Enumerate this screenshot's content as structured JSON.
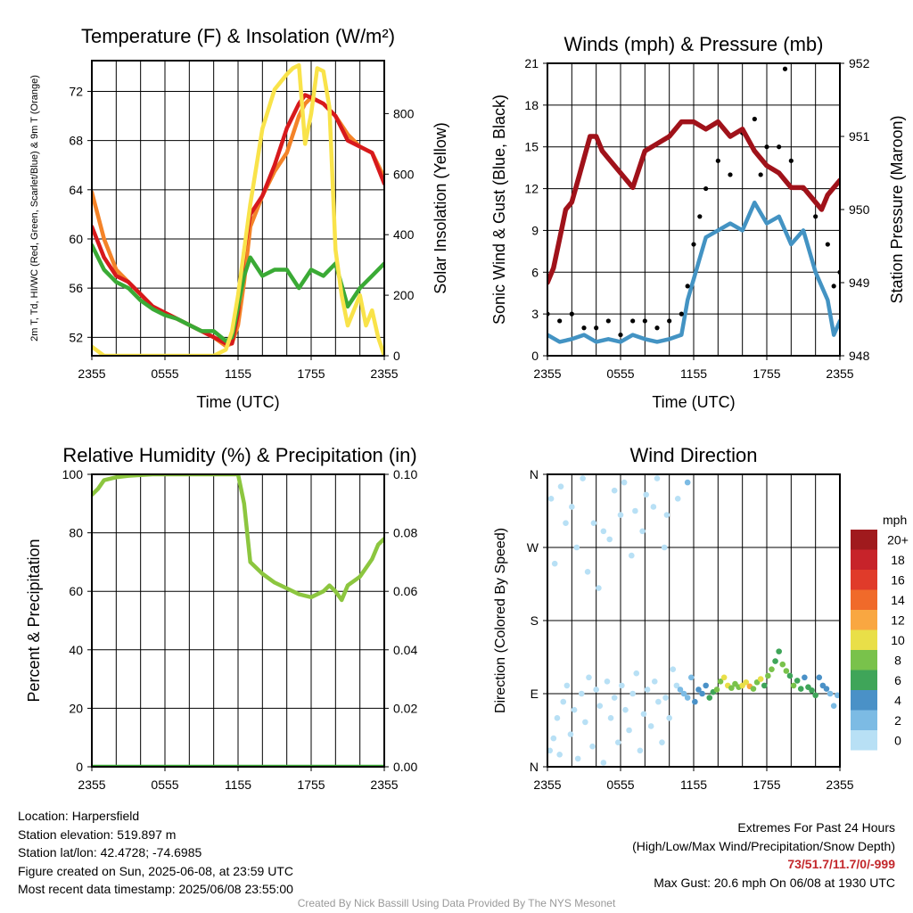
{
  "chart_data": [
    {
      "type": "line",
      "title": "Temperature (F) & Insolation (W/m²)",
      "xlabel": "Time (UTC)",
      "ylabel": "2m T, Td, HI/WC (Red, Green, Scarlet/Blue) & 9m T (Orange)",
      "y2label": "Solar Insolation (Yellow)",
      "x_ticks": [
        "2355",
        "0555",
        "1155",
        "1755",
        "2355"
      ],
      "y_ticks": [
        52,
        56,
        60,
        64,
        68,
        72
      ],
      "y2_ticks": [
        0,
        200,
        400,
        600,
        800
      ],
      "ylim": [
        50.5,
        74.5
      ],
      "y2lim": [
        0,
        975
      ],
      "x_hours": [
        0,
        24
      ],
      "grid": true,
      "series": [
        {
          "color": "#f48328",
          "x": [
            0,
            1,
            2,
            3,
            4,
            5,
            6,
            7,
            8,
            9,
            10,
            11,
            11.5,
            12,
            12.5,
            13,
            14,
            15,
            16,
            17,
            17.5,
            18,
            19,
            20,
            21,
            22,
            23,
            24
          ],
          "values": [
            63.8,
            60,
            57.5,
            56.5,
            55.5,
            54.5,
            54,
            53.5,
            53,
            52.5,
            52,
            51.3,
            51.5,
            53,
            56.5,
            61,
            63.5,
            65.5,
            67,
            70,
            71,
            71.5,
            71,
            70,
            68.5,
            67.5,
            67,
            65
          ]
        },
        {
          "color": "#d7191c",
          "x": [
            0,
            1,
            2,
            3,
            4,
            5,
            6,
            7,
            8,
            9,
            10,
            11,
            11.5,
            12,
            12.5,
            13,
            14,
            15,
            16,
            17,
            17.5,
            18,
            19,
            20,
            21,
            22,
            23,
            24
          ],
          "values": [
            61,
            58.5,
            57,
            56.5,
            55.5,
            54.5,
            54,
            53.5,
            53,
            52.5,
            52,
            51.5,
            51.5,
            54,
            59,
            62,
            63.5,
            66,
            69,
            71,
            71.7,
            71.5,
            71,
            70,
            68,
            67.5,
            67,
            64.5
          ]
        },
        {
          "color": "#3aaa35",
          "x": [
            0,
            1,
            2,
            3,
            4,
            5,
            6,
            7,
            8,
            9,
            10,
            11,
            11.5,
            12,
            12.5,
            13,
            14,
            15,
            16,
            17,
            18,
            19,
            20,
            21,
            22,
            23,
            24
          ],
          "values": [
            59.5,
            57.5,
            56.5,
            56,
            55,
            54.3,
            53.8,
            53.5,
            53,
            52.5,
            52.5,
            51.7,
            52,
            54.5,
            57,
            58.5,
            57,
            57.5,
            57.5,
            56,
            57.5,
            57,
            58,
            54.5,
            56,
            57,
            58
          ]
        },
        {
          "color": "#f9e34a",
          "axis": "y2",
          "x": [
            0,
            1,
            2,
            3,
            4,
            5,
            6,
            7,
            8,
            9,
            10,
            11,
            11.5,
            12,
            13,
            14,
            15,
            16,
            16.5,
            17,
            17.5,
            18,
            18.5,
            19,
            19.5,
            20,
            20.5,
            21,
            22,
            22.5,
            23,
            23.5,
            24
          ],
          "values": [
            30,
            0,
            0,
            0,
            0,
            0,
            0,
            0,
            0,
            0,
            0,
            20,
            80,
            200,
            500,
            750,
            880,
            930,
            950,
            960,
            700,
            800,
            950,
            940,
            820,
            350,
            200,
            100,
            200,
            100,
            150,
            60,
            0
          ]
        }
      ]
    },
    {
      "type": "line",
      "title": "Winds (mph) & Pressure (mb)",
      "xlabel": "Time (UTC)",
      "ylabel": "Sonic Wind & Gust (Blue, Black)",
      "y2label": "Station Pressure (Maroon)",
      "x_ticks": [
        "2355",
        "0555",
        "1155",
        "1755",
        "2355"
      ],
      "y_ticks": [
        0,
        3,
        6,
        9,
        12,
        15,
        18,
        21
      ],
      "y2_ticks": [
        948,
        949,
        950,
        951,
        952
      ],
      "ylim": [
        0,
        21
      ],
      "y2lim": [
        948,
        952
      ],
      "x_hours": [
        0,
        24
      ],
      "grid": true,
      "series": [
        {
          "color": "#4393c3",
          "x": [
            0,
            1,
            2,
            3,
            4,
            5,
            6,
            7,
            8,
            9,
            10,
            11,
            11.5,
            12,
            12.5,
            13,
            14,
            15,
            16,
            17,
            18,
            19,
            20,
            21,
            22,
            23,
            23.5,
            24
          ],
          "values": [
            1.5,
            1,
            1.2,
            1.5,
            1,
            1.2,
            1,
            1.5,
            1.2,
            1,
            1.2,
            1.5,
            4,
            5.5,
            7,
            8.5,
            9,
            9.5,
            9,
            11,
            9.5,
            10,
            8,
            9,
            6,
            4,
            1.5,
            2.5
          ]
        },
        {
          "color": "#000000",
          "style": "points",
          "x": [
            0,
            1,
            2,
            3,
            4,
            5,
            6,
            7,
            8,
            9,
            10,
            11,
            11.5,
            12,
            12.5,
            13,
            14,
            15,
            16,
            17,
            17.5,
            18,
            19,
            19.5,
            20,
            21,
            22,
            23,
            23.5,
            24
          ],
          "values": [
            3,
            2.5,
            3,
            2,
            2,
            2.5,
            1.5,
            2.5,
            2.5,
            2,
            2.5,
            3,
            5,
            8,
            10,
            12,
            14,
            13,
            16,
            17,
            13,
            15,
            15,
            20.6,
            14,
            12,
            10,
            8,
            5,
            6
          ]
        },
        {
          "color": "#a0121a",
          "axis": "y2",
          "x": [
            0,
            0.5,
            1,
            1.5,
            2,
            2.5,
            3,
            3.5,
            4,
            4.5,
            5,
            6,
            7,
            8,
            9,
            10,
            11,
            12,
            13,
            14,
            15,
            16,
            17,
            18,
            19,
            20,
            21,
            22,
            22.5,
            23,
            23.5,
            24
          ],
          "values": [
            949,
            949.2,
            949.6,
            950,
            950.1,
            950.4,
            950.7,
            951,
            951,
            950.8,
            950.7,
            950.5,
            950.3,
            950.8,
            950.9,
            951,
            951.2,
            951.2,
            951.1,
            951.2,
            951,
            951.1,
            950.8,
            950.6,
            950.5,
            950.3,
            950.3,
            950.1,
            950,
            950.2,
            950.3,
            950.4
          ]
        }
      ]
    },
    {
      "type": "line",
      "title": "Relative Humidity (%) & Precipitation (in)",
      "xlabel": "",
      "ylabel": "Percent & Precipitation",
      "x_ticks": [
        "2355",
        "0555",
        "1155",
        "1755",
        "2355"
      ],
      "y_ticks": [
        0,
        20,
        40,
        60,
        80,
        100
      ],
      "y2_ticks": [
        "0.00",
        "0.02",
        "0.04",
        "0.06",
        "0.08",
        "0.10"
      ],
      "ylim": [
        0,
        100
      ],
      "y2lim": [
        0,
        0.1
      ],
      "x_hours": [
        0,
        24
      ],
      "grid": true,
      "series": [
        {
          "color": "#8cc63f",
          "x": [
            0,
            0.5,
            1,
            2,
            3,
            4,
            5,
            6,
            7,
            8,
            9,
            10,
            11,
            12,
            12.5,
            13,
            14,
            15,
            16,
            17,
            18,
            19,
            19.5,
            20,
            20.5,
            21,
            22,
            23,
            23.5,
            24
          ],
          "values": [
            93,
            95,
            98,
            99,
            99.5,
            99.8,
            100,
            100,
            100,
            100,
            100,
            100,
            100,
            100,
            90,
            70,
            66,
            63,
            61,
            59,
            58,
            60,
            62,
            60,
            57,
            62,
            65,
            71,
            76,
            78
          ]
        },
        {
          "color": "#3aaa35",
          "axis": "y2",
          "x": [
            0,
            24
          ],
          "values": [
            0,
            0
          ]
        }
      ]
    },
    {
      "type": "scatter",
      "title": "Wind Direction",
      "xlabel": "",
      "ylabel": "Direction (Colored By Speed)",
      "x_ticks": [
        "2355",
        "0555",
        "1155",
        "1755",
        "2355"
      ],
      "y_ticks": [
        "N",
        "E",
        "S",
        "W",
        "N"
      ],
      "ylim": [
        0,
        360
      ],
      "x_hours": [
        0,
        24
      ],
      "grid": true,
      "legend": {
        "title": "mph",
        "labels": [
          "20+",
          "18",
          "16",
          "14",
          "12",
          "10",
          "8",
          "6",
          "4",
          "2",
          "0"
        ],
        "colors": [
          "#a01a1d",
          "#c7232a",
          "#e03b2a",
          "#f06a2a",
          "#f9a741",
          "#e9df48",
          "#79c24b",
          "#3fa559",
          "#4a91c7",
          "#7cbbe4",
          "#b8e0f5"
        ]
      },
      "points": {
        "x": [
          0.2,
          0.5,
          0.8,
          1.0,
          1.3,
          1.6,
          1.9,
          2.2,
          2.5,
          2.8,
          3.1,
          3.4,
          3.7,
          4.0,
          4.3,
          4.6,
          4.9,
          5.2,
          5.5,
          5.8,
          6.1,
          6.4,
          6.7,
          7.0,
          7.3,
          7.6,
          7.9,
          8.2,
          8.5,
          8.8,
          9.1,
          9.4,
          9.7,
          10.0,
          10.3,
          10.6,
          10.9,
          11.2,
          11.5,
          11.8,
          12.1,
          12.4,
          12.7,
          13.0,
          13.3,
          13.6,
          13.9,
          14.2,
          14.5,
          14.8,
          15.1,
          15.4,
          15.7,
          16.0,
          16.3,
          16.6,
          16.9,
          17.2,
          17.5,
          17.8,
          18.1,
          18.4,
          18.7,
          19.0,
          19.3,
          19.6,
          19.9,
          20.2,
          20.5,
          20.8,
          21.1,
          21.4,
          21.7,
          22.0,
          22.3,
          22.6,
          22.9,
          23.2,
          23.5,
          23.8,
          0.3,
          1.1,
          2.0,
          2.9,
          3.8,
          4.6,
          5.5,
          6.3,
          7.2,
          8.1,
          9.0,
          9.8,
          10.7,
          11.5,
          0.6,
          1.5,
          2.4,
          3.3,
          4.2,
          5.1,
          6.0,
          6.9,
          7.8,
          8.7,
          9.6
        ],
        "y": [
          20,
          35,
          60,
          15,
          80,
          100,
          40,
          70,
          10,
          90,
          55,
          110,
          25,
          95,
          75,
          5,
          105,
          60,
          85,
          30,
          100,
          70,
          45,
          90,
          115,
          20,
          65,
          95,
          50,
          105,
          80,
          30,
          85,
          60,
          120,
          100,
          95,
          90,
          85,
          110,
          80,
          95,
          90,
          100,
          85,
          92,
          95,
          105,
          110,
          100,
          97,
          102,
          98,
          100,
          104,
          99,
          96,
          104,
          108,
          100,
          112,
          120,
          130,
          142,
          126,
          118,
          112,
          100,
          106,
          96,
          110,
          98,
          94,
          88,
          110,
          100,
          96,
          90,
          75,
          88,
          330,
          345,
          320,
          355,
          300,
          290,
          340,
          350,
          315,
          335,
          355,
          310,
          330,
          350,
          250,
          300,
          270,
          240,
          220,
          280,
          310,
          260,
          290,
          320,
          270
        ],
        "speed": [
          1,
          1,
          1,
          1,
          1,
          1,
          1,
          1,
          1,
          1,
          1,
          1,
          1,
          1,
          1,
          1,
          1,
          1,
          1,
          1,
          1,
          1,
          1,
          1,
          1,
          1,
          1,
          1,
          1,
          1,
          1,
          1,
          1,
          1,
          1,
          1,
          2,
          2,
          3,
          3,
          4,
          4,
          5,
          5,
          6,
          7,
          8,
          9,
          10,
          11,
          9,
          8,
          9,
          10,
          11,
          12,
          8,
          9,
          10,
          7,
          8,
          9,
          7,
          6,
          8,
          9,
          7,
          8,
          6,
          7,
          5,
          6,
          7,
          6,
          5,
          4,
          4,
          3,
          2,
          2,
          1,
          1,
          1,
          1,
          1,
          1,
          1,
          1,
          1,
          1,
          1,
          1,
          1,
          2,
          1,
          1,
          1,
          1,
          1,
          1,
          1,
          1,
          1,
          1,
          1
        ]
      }
    }
  ],
  "info": {
    "location": "Location: Harpersfield",
    "elevation": "Station elevation: 519.897 m",
    "latlon": "Station lat/lon: 42.4728; -74.6985",
    "created": "Figure created on Sun, 2025-06-08, at 23:59 UTC",
    "recent": "Most recent data timestamp: 2025/06/08 23:55:00"
  },
  "extremes": {
    "title": "Extremes For Past 24 Hours",
    "subtitle": "(High/Low/Max Wind/Precipitation/Snow Depth)",
    "values": "73/51.7/11.7/0/-999",
    "gust": "Max Gust: 20.6 mph On 06/08 at 1930 UTC"
  },
  "credit": "Created By Nick Bassill Using Data Provided By The NYS Mesonet"
}
